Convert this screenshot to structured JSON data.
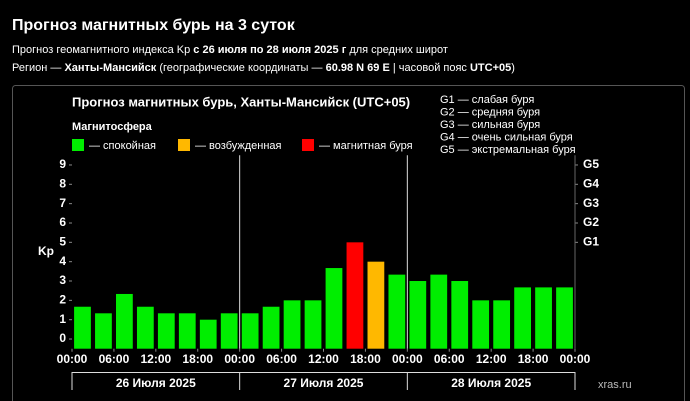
{
  "header": {
    "title": "Прогноз магнитных бурь на 3 суток",
    "subtitle_parts": [
      "Прогноз геомагнитного индекса Kp ",
      "с 26 июля по 28 июля 2025 г",
      " для средних широт"
    ],
    "region_parts": [
      "Регион — ",
      "Ханты-Мансийск",
      " (географические координаты — ",
      "60.98 N 69 E",
      " | часовой пояс ",
      "UTC+05",
      ")"
    ]
  },
  "chart_data": {
    "type": "bar",
    "title": "Прогноз магнитных бурь, Ханты-Мансийск (UTC+05)",
    "legend_title": "Магнитосфера",
    "legend": [
      {
        "label": "— спокойная",
        "color": "#00ee00"
      },
      {
        "label": "— возбужденная",
        "color": "#ffb800"
      },
      {
        "label": "— магнитная буря",
        "color": "#ff0000"
      }
    ],
    "storm_scale": [
      "G1 — слабая буря",
      "G2 — средняя буря",
      "G3 — сильная буря",
      "G4 — очень сильная буря",
      "G5 — экстремальная буря"
    ],
    "ylabel": "Kp",
    "x": [
      1.5,
      4.5,
      7.5,
      10.5,
      13.5,
      16.5,
      19.5,
      22.5,
      25.5,
      28.5,
      31.5,
      34.5,
      37.5,
      40.5,
      43.5,
      46.5,
      49.5,
      52.5,
      55.5,
      58.5,
      61.5,
      64.5,
      67.5,
      70.5
    ],
    "series": [
      {
        "name": "Kp",
        "values": [
          1.67,
          1.33,
          2.33,
          1.67,
          1.33,
          1.33,
          1.0,
          1.33,
          1.33,
          1.67,
          2.0,
          2.0,
          3.67,
          5.0,
          4.0,
          3.33,
          3.0,
          3.33,
          3.0,
          2.0,
          2.0,
          2.67,
          2.67,
          2.67
        ],
        "colors": [
          "#00ee00",
          "#00ee00",
          "#00ee00",
          "#00ee00",
          "#00ee00",
          "#00ee00",
          "#00ee00",
          "#00ee00",
          "#00ee00",
          "#00ee00",
          "#00ee00",
          "#00ee00",
          "#00ee00",
          "#ff0000",
          "#ffb800",
          "#00ee00",
          "#00ee00",
          "#00ee00",
          "#00ee00",
          "#00ee00",
          "#00ee00",
          "#00ee00",
          "#00ee00",
          "#00ee00"
        ]
      }
    ],
    "xlim": [
      0,
      72
    ],
    "xticks": [
      {
        "value": 0,
        "label": "00:00"
      },
      {
        "value": 6,
        "label": "06:00"
      },
      {
        "value": 12,
        "label": "12:00"
      },
      {
        "value": 18,
        "label": "18:00"
      },
      {
        "value": 24,
        "label": "00:00"
      },
      {
        "value": 30,
        "label": "06:00"
      },
      {
        "value": 36,
        "label": "12:00"
      },
      {
        "value": 42,
        "label": "18:00"
      },
      {
        "value": 48,
        "label": "00:00"
      },
      {
        "value": 54,
        "label": "06:00"
      },
      {
        "value": 60,
        "label": "12:00"
      },
      {
        "value": 66,
        "label": "18:00"
      },
      {
        "value": 72,
        "label": "00:00"
      }
    ],
    "day_boundaries": [
      0,
      24,
      48,
      72
    ],
    "day_labels": [
      "26 Июля 2025",
      "27 Июля 2025",
      "28 Июля 2025"
    ],
    "ylim": [
      -0.5,
      9.5
    ],
    "yticks": [
      0,
      1,
      2,
      3,
      4,
      5,
      6,
      7,
      8,
      9
    ],
    "y2ticks": [
      {
        "value": 5,
        "label": "G1"
      },
      {
        "value": 6,
        "label": "G2"
      },
      {
        "value": 7,
        "label": "G3"
      },
      {
        "value": 8,
        "label": "G4"
      },
      {
        "value": 9,
        "label": "G5"
      }
    ],
    "watermark": "xras.ru"
  }
}
